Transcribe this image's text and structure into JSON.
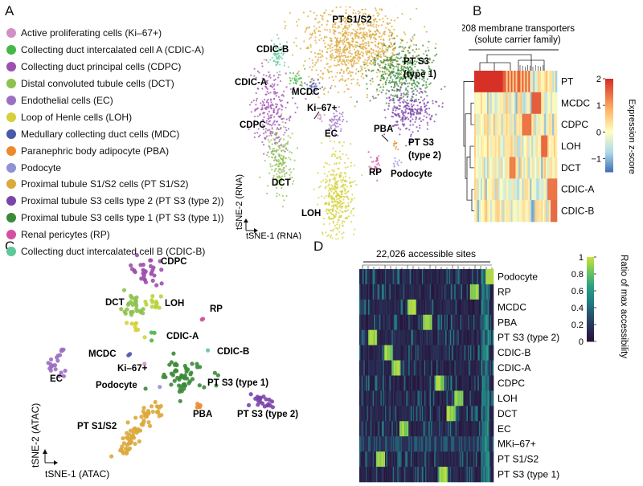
{
  "panels": {
    "a": "A",
    "b": "B",
    "c": "C",
    "d": "D"
  },
  "legend": [
    {
      "label": "Active proliferating cells (Ki–67+)",
      "color": "#d28fc8"
    },
    {
      "label": "Collecting  duct intercalated  cell A (CDIC-A)",
      "color": "#48b749"
    },
    {
      "label": "Collecting  duct principal  cells (CDPC)",
      "color": "#9f4fb0"
    },
    {
      "label": "Distal convoluted tubule cells (DCT)",
      "color": "#8dc24e"
    },
    {
      "label": "Endothelial cells (EC)",
      "color": "#9c70c1"
    },
    {
      "label": "Loop of Henle cells (LOH)",
      "color": "#d4d13a"
    },
    {
      "label": "Medullary collecting duct cells (MDC)",
      "color": "#4b5aa8"
    },
    {
      "label": "Paranephric body adipocyte (PBA)",
      "color": "#ec8a2d"
    },
    {
      "label": "Podocyte",
      "color": "#8f92d6"
    },
    {
      "label": "Proximal tubule S1/S2 cells (PT S1/S2)",
      "color": "#dca93b"
    },
    {
      "label": "Proximal tubule S3 cells type 2 (PT S3 (type 2))",
      "color": "#7a44a8"
    },
    {
      "label": "Proximal tubule S3 cells type 1 (PT S3 (type 1))",
      "color": "#3b8a3a"
    },
    {
      "label": "Renal pericytes (RP)",
      "color": "#d44fa0"
    },
    {
      "label": "Collecting  duct intercalated  cell B (CDIC-B)",
      "color": "#5fc79a"
    }
  ],
  "panel_a": {
    "cluster_labels": [
      "PT S1/S2",
      "CDIC-B",
      "PT  S3",
      "(type 1)",
      "CDIC-A",
      "MCDC",
      "Ki–67+",
      "CDPC",
      "EC",
      "PBA",
      "PT  S3",
      "(type 2)",
      "RP",
      "Podocyte",
      "DCT",
      "LOH"
    ],
    "y_axis": "tSNE-2 (RNA)",
    "x_axis": "tSNE-1 (RNA)"
  },
  "panel_b": {
    "header_line1": "208 membrane transporters",
    "header_line2": "(solute carrier family)",
    "rows": [
      "PT",
      "MCDC",
      "CDPC",
      "LOH",
      "DCT",
      "CDIC-A",
      "CDIC-B"
    ],
    "colorbar_title": "Expression z-score",
    "colorbar_ticks": [
      "2",
      "1",
      "0",
      "−1"
    ]
  },
  "panel_c": {
    "cluster_labels": [
      "CDPC",
      "DCT",
      "LOH",
      "RP",
      "CDIC-A",
      "CDIC-B",
      "MCDC",
      "Ki–67+",
      "PT S3 (type 1)",
      "EC",
      "Podocyte",
      "PBA",
      "PT S3 (type 2)",
      "PT S1/S2"
    ],
    "y_axis": "tSNE-2 (ATAC)",
    "x_axis": "tSNE-1 (ATAC)"
  },
  "panel_d": {
    "header": "22,026 accessible sites",
    "rows": [
      "Podocyte",
      "RP",
      "MCDC",
      "PBA",
      "PT S3 (type 2)",
      "CDIC-B",
      "CDIC-A",
      "CDPC",
      "LOH",
      "DCT",
      "EC",
      "MKi–67+",
      "PT S1/S2",
      "PT S3 (type 1)"
    ],
    "colorbar_title": "Ratio of max accessibility",
    "colorbar_ticks": [
      "1",
      "0.8",
      "0.6",
      "0.4",
      "0.2",
      "0"
    ]
  }
}
